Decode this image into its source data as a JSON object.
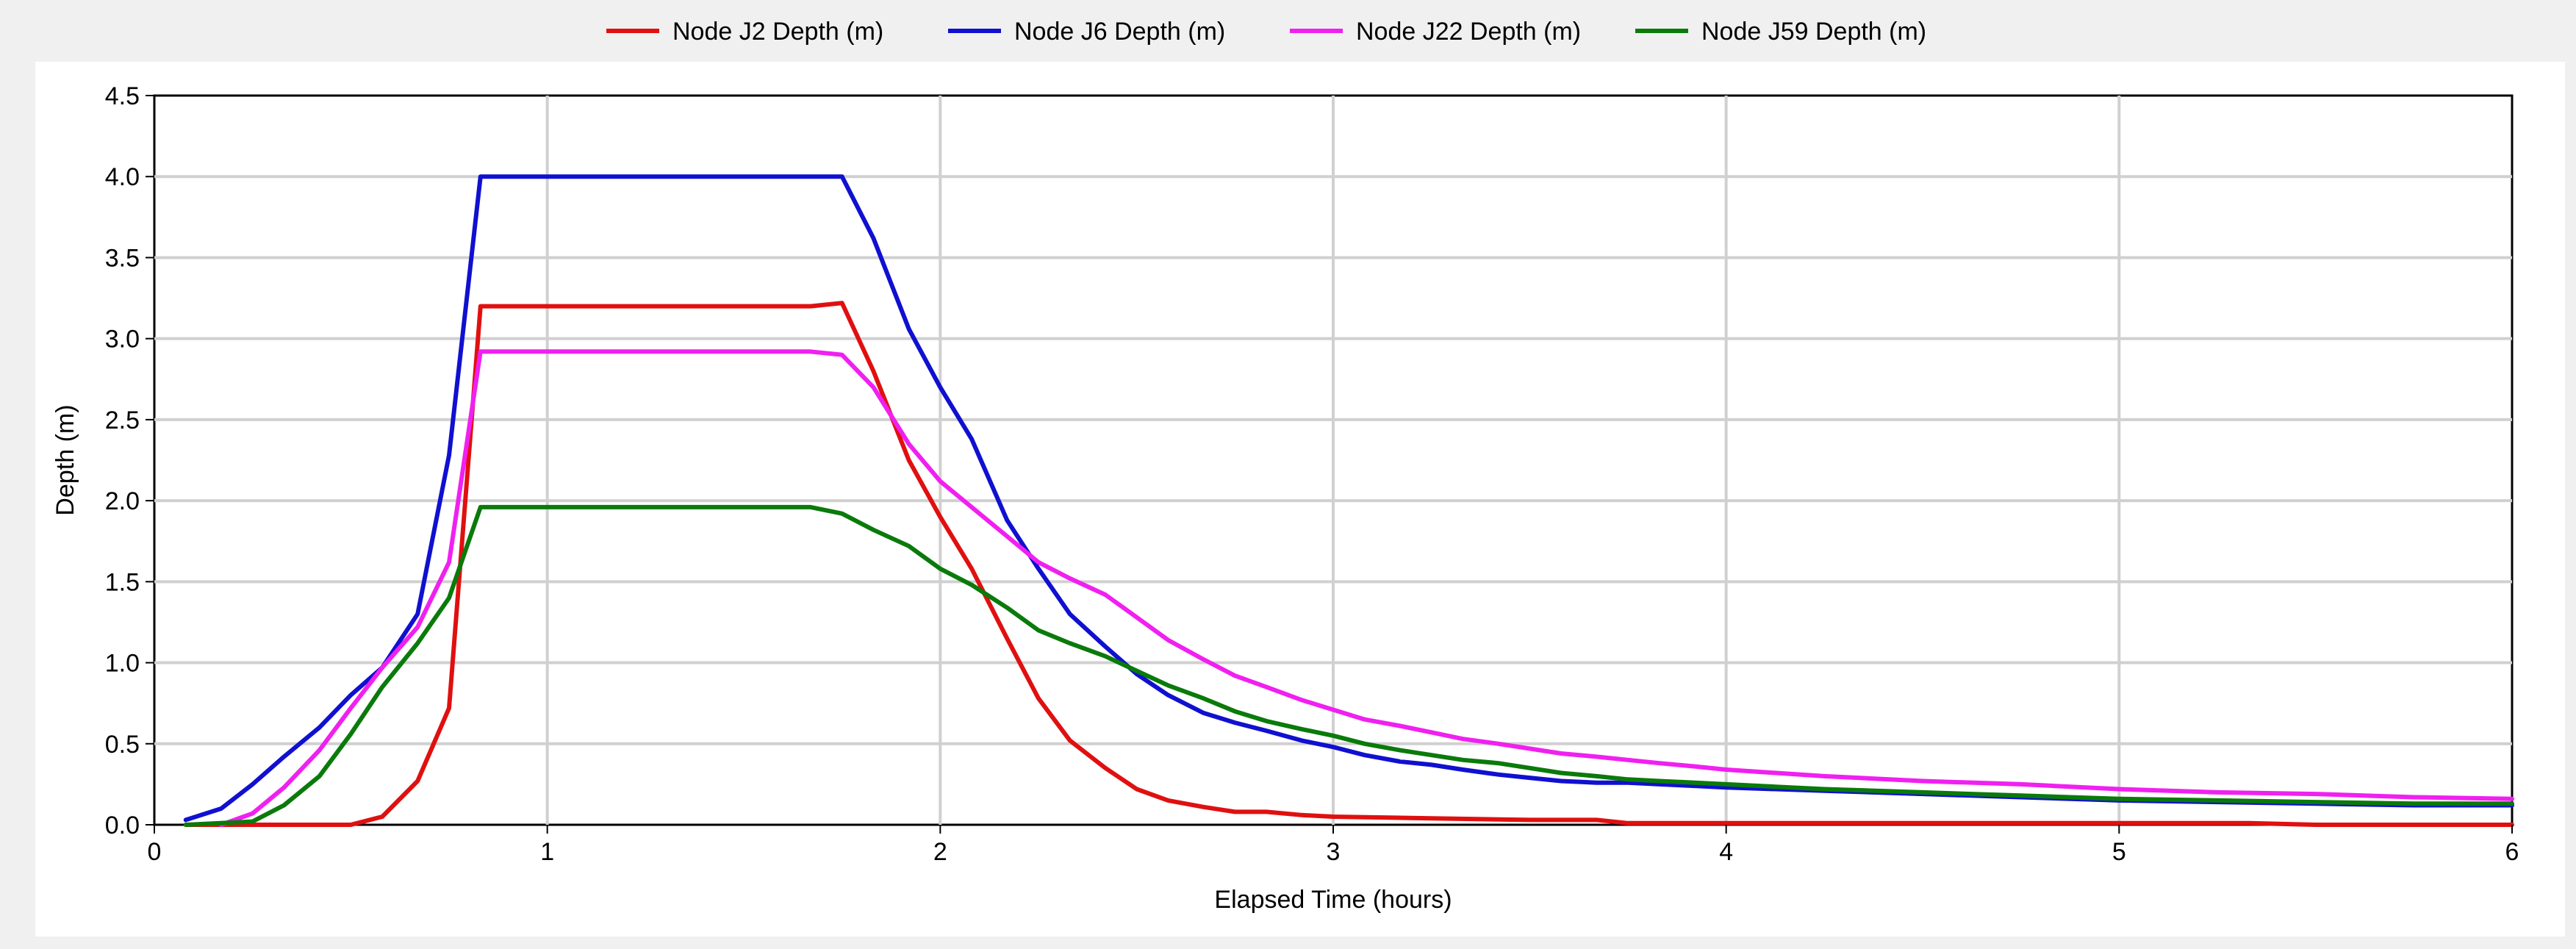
{
  "chart_data": {
    "type": "line",
    "title": "",
    "xlabel": "Elapsed Time (hours)",
    "ylabel": "Depth (m)",
    "xlim": [
      0,
      6
    ],
    "ylim": [
      0,
      4.5
    ],
    "xticks": [
      "0",
      "1",
      "2",
      "3",
      "4",
      "5",
      "6"
    ],
    "yticks": [
      "0.0",
      "0.5",
      "1.0",
      "1.5",
      "2.0",
      "2.5",
      "3.0",
      "3.5",
      "4.0",
      "4.5"
    ],
    "grid": true,
    "legend_position": "top-center",
    "series": [
      {
        "name": "Node J2 Depth (m)",
        "color": "#e01010",
        "points": [
          [
            0.08,
            0
          ],
          [
            0.5,
            0
          ],
          [
            0.58,
            0.05
          ],
          [
            0.67,
            0.27
          ],
          [
            0.75,
            0.72
          ],
          [
            0.83,
            3.2
          ],
          [
            1.0,
            3.2
          ],
          [
            1.5,
            3.2
          ],
          [
            1.67,
            3.2
          ],
          [
            1.75,
            3.22
          ],
          [
            1.83,
            2.8
          ],
          [
            1.92,
            2.25
          ],
          [
            2.0,
            1.9
          ],
          [
            2.08,
            1.58
          ],
          [
            2.17,
            1.15
          ],
          [
            2.25,
            0.78
          ],
          [
            2.33,
            0.52
          ],
          [
            2.42,
            0.35
          ],
          [
            2.5,
            0.22
          ],
          [
            2.58,
            0.15
          ],
          [
            2.67,
            0.11
          ],
          [
            2.75,
            0.08
          ],
          [
            2.83,
            0.08
          ],
          [
            2.92,
            0.06
          ],
          [
            3.0,
            0.05
          ],
          [
            3.25,
            0.04
          ],
          [
            3.5,
            0.03
          ],
          [
            3.67,
            0.03
          ],
          [
            3.75,
            0.01
          ],
          [
            4.0,
            0.01
          ],
          [
            4.5,
            0.01
          ],
          [
            5.0,
            0.01
          ],
          [
            5.33,
            0.01
          ],
          [
            5.5,
            0
          ],
          [
            6.0,
            0
          ]
        ]
      },
      {
        "name": "Node J6 Depth (m)",
        "color": "#1010d0",
        "points": [
          [
            0.08,
            0.03
          ],
          [
            0.17,
            0.1
          ],
          [
            0.25,
            0.25
          ],
          [
            0.33,
            0.42
          ],
          [
            0.42,
            0.6
          ],
          [
            0.5,
            0.8
          ],
          [
            0.58,
            0.97
          ],
          [
            0.67,
            1.3
          ],
          [
            0.75,
            2.28
          ],
          [
            0.83,
            4.0
          ],
          [
            1.0,
            4.0
          ],
          [
            1.5,
            4.0
          ],
          [
            1.75,
            4.0
          ],
          [
            1.83,
            3.62
          ],
          [
            1.92,
            3.06
          ],
          [
            2.0,
            2.7
          ],
          [
            2.08,
            2.38
          ],
          [
            2.17,
            1.88
          ],
          [
            2.25,
            1.58
          ],
          [
            2.33,
            1.3
          ],
          [
            2.42,
            1.1
          ],
          [
            2.5,
            0.93
          ],
          [
            2.58,
            0.8
          ],
          [
            2.67,
            0.69
          ],
          [
            2.75,
            0.63
          ],
          [
            2.83,
            0.58
          ],
          [
            2.92,
            0.52
          ],
          [
            3.0,
            0.48
          ],
          [
            3.08,
            0.43
          ],
          [
            3.17,
            0.39
          ],
          [
            3.25,
            0.37
          ],
          [
            3.33,
            0.34
          ],
          [
            3.42,
            0.31
          ],
          [
            3.5,
            0.29
          ],
          [
            3.58,
            0.27
          ],
          [
            3.67,
            0.26
          ],
          [
            3.75,
            0.26
          ],
          [
            3.83,
            0.25
          ],
          [
            3.92,
            0.24
          ],
          [
            4.0,
            0.23
          ],
          [
            4.25,
            0.21
          ],
          [
            4.5,
            0.19
          ],
          [
            4.75,
            0.17
          ],
          [
            5.0,
            0.15
          ],
          [
            5.25,
            0.14
          ],
          [
            5.5,
            0.13
          ],
          [
            5.75,
            0.12
          ],
          [
            6.0,
            0.12
          ]
        ]
      },
      {
        "name": "Node J22 Depth (m)",
        "color": "#f020f0",
        "points": [
          [
            0.17,
            0
          ],
          [
            0.25,
            0.07
          ],
          [
            0.33,
            0.23
          ],
          [
            0.42,
            0.46
          ],
          [
            0.5,
            0.72
          ],
          [
            0.58,
            0.97
          ],
          [
            0.67,
            1.22
          ],
          [
            0.75,
            1.62
          ],
          [
            0.83,
            2.92
          ],
          [
            1.0,
            2.92
          ],
          [
            1.5,
            2.92
          ],
          [
            1.67,
            2.92
          ],
          [
            1.75,
            2.9
          ],
          [
            1.83,
            2.7
          ],
          [
            1.92,
            2.35
          ],
          [
            2.0,
            2.12
          ],
          [
            2.08,
            1.96
          ],
          [
            2.17,
            1.78
          ],
          [
            2.25,
            1.62
          ],
          [
            2.33,
            1.52
          ],
          [
            2.42,
            1.42
          ],
          [
            2.5,
            1.28
          ],
          [
            2.58,
            1.14
          ],
          [
            2.67,
            1.02
          ],
          [
            2.75,
            0.92
          ],
          [
            2.83,
            0.85
          ],
          [
            2.92,
            0.77
          ],
          [
            3.0,
            0.71
          ],
          [
            3.08,
            0.65
          ],
          [
            3.17,
            0.61
          ],
          [
            3.25,
            0.57
          ],
          [
            3.33,
            0.53
          ],
          [
            3.42,
            0.5
          ],
          [
            3.5,
            0.47
          ],
          [
            3.58,
            0.44
          ],
          [
            3.67,
            0.42
          ],
          [
            3.75,
            0.4
          ],
          [
            3.83,
            0.38
          ],
          [
            3.92,
            0.36
          ],
          [
            4.0,
            0.34
          ],
          [
            4.25,
            0.3
          ],
          [
            4.5,
            0.27
          ],
          [
            4.75,
            0.25
          ],
          [
            5.0,
            0.22
          ],
          [
            5.25,
            0.2
          ],
          [
            5.5,
            0.19
          ],
          [
            5.75,
            0.17
          ],
          [
            6.0,
            0.16
          ]
        ]
      },
      {
        "name": "Node J59 Depth (m)",
        "color": "#0a7a0a",
        "points": [
          [
            0.08,
            0
          ],
          [
            0.25,
            0.02
          ],
          [
            0.33,
            0.12
          ],
          [
            0.42,
            0.3
          ],
          [
            0.5,
            0.56
          ],
          [
            0.58,
            0.85
          ],
          [
            0.67,
            1.12
          ],
          [
            0.75,
            1.4
          ],
          [
            0.83,
            1.96
          ],
          [
            1.0,
            1.96
          ],
          [
            1.5,
            1.96
          ],
          [
            1.67,
            1.96
          ],
          [
            1.75,
            1.92
          ],
          [
            1.83,
            1.82
          ],
          [
            1.92,
            1.72
          ],
          [
            2.0,
            1.58
          ],
          [
            2.08,
            1.48
          ],
          [
            2.17,
            1.34
          ],
          [
            2.25,
            1.2
          ],
          [
            2.33,
            1.12
          ],
          [
            2.42,
            1.04
          ],
          [
            2.5,
            0.95
          ],
          [
            2.58,
            0.86
          ],
          [
            2.67,
            0.78
          ],
          [
            2.75,
            0.7
          ],
          [
            2.83,
            0.64
          ],
          [
            2.92,
            0.59
          ],
          [
            3.0,
            0.55
          ],
          [
            3.08,
            0.5
          ],
          [
            3.17,
            0.46
          ],
          [
            3.25,
            0.43
          ],
          [
            3.33,
            0.4
          ],
          [
            3.42,
            0.38
          ],
          [
            3.5,
            0.35
          ],
          [
            3.58,
            0.32
          ],
          [
            3.67,
            0.3
          ],
          [
            3.75,
            0.28
          ],
          [
            3.83,
            0.27
          ],
          [
            3.92,
            0.26
          ],
          [
            4.0,
            0.25
          ],
          [
            4.25,
            0.22
          ],
          [
            4.5,
            0.2
          ],
          [
            4.75,
            0.18
          ],
          [
            5.0,
            0.16
          ],
          [
            5.25,
            0.15
          ],
          [
            5.5,
            0.14
          ],
          [
            5.75,
            0.13
          ],
          [
            6.0,
            0.13
          ]
        ]
      }
    ]
  }
}
